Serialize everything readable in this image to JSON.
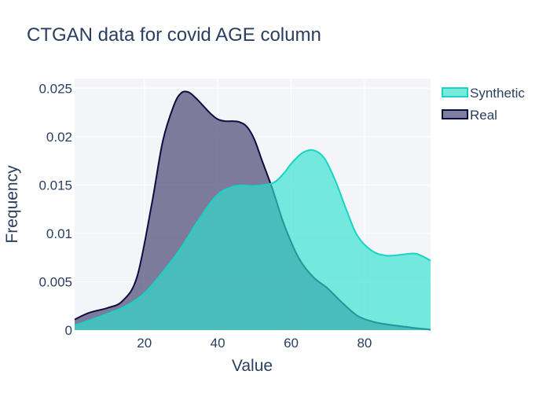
{
  "chart_data": {
    "type": "area",
    "title": "CTGAN data for covid AGE column",
    "xlabel": "Value",
    "ylabel": "Frequency",
    "xlim": [
      1,
      98
    ],
    "ylim": [
      0,
      0.026
    ],
    "x_ticks": [
      20,
      40,
      60,
      80
    ],
    "x_tick_labels": [
      "20",
      "40",
      "60",
      "80"
    ],
    "y_ticks": [
      0,
      0.005,
      0.01,
      0.015,
      0.02,
      0.025
    ],
    "y_tick_labels": [
      "0",
      "0.005",
      "0.01",
      "0.015",
      "0.02",
      "0.025"
    ],
    "grid": true,
    "legend_position": "top-right",
    "series": [
      {
        "name": "Real",
        "fill": "#4a4774",
        "fill_opacity": 0.7,
        "line": "#0d0d3f",
        "x": [
          1,
          5,
          10,
          14,
          18,
          22,
          25,
          28,
          30,
          32,
          34,
          36,
          38,
          40,
          42,
          44,
          46,
          48,
          50,
          52,
          55,
          58,
          62,
          66,
          70,
          74,
          78,
          82,
          86,
          90,
          94,
          98
        ],
        "y": [
          0.0011,
          0.0018,
          0.0023,
          0.003,
          0.0055,
          0.013,
          0.0195,
          0.0232,
          0.0245,
          0.0246,
          0.024,
          0.0232,
          0.0224,
          0.0218,
          0.0216,
          0.0216,
          0.0215,
          0.021,
          0.0197,
          0.0176,
          0.0145,
          0.011,
          0.0075,
          0.0055,
          0.0043,
          0.0028,
          0.0015,
          0.0009,
          0.0006,
          0.0004,
          0.0002,
          5e-05
        ]
      },
      {
        "name": "Synthetic",
        "fill": "#2ee0cc",
        "fill_opacity": 0.65,
        "line": "#19d3c5",
        "x": [
          1,
          5,
          10,
          15,
          20,
          25,
          30,
          35,
          40,
          45,
          50,
          55,
          58,
          60,
          63,
          66,
          69,
          72,
          75,
          78,
          82,
          86,
          90,
          94,
          98
        ],
        "y": [
          0.0005,
          0.001,
          0.0017,
          0.0025,
          0.0038,
          0.006,
          0.0085,
          0.0115,
          0.014,
          0.0149,
          0.0149,
          0.0152,
          0.0162,
          0.0172,
          0.0183,
          0.0186,
          0.0178,
          0.0155,
          0.0125,
          0.0098,
          0.0082,
          0.0077,
          0.0078,
          0.0079,
          0.0072
        ]
      }
    ],
    "legend_order": [
      "Synthetic",
      "Real"
    ]
  }
}
